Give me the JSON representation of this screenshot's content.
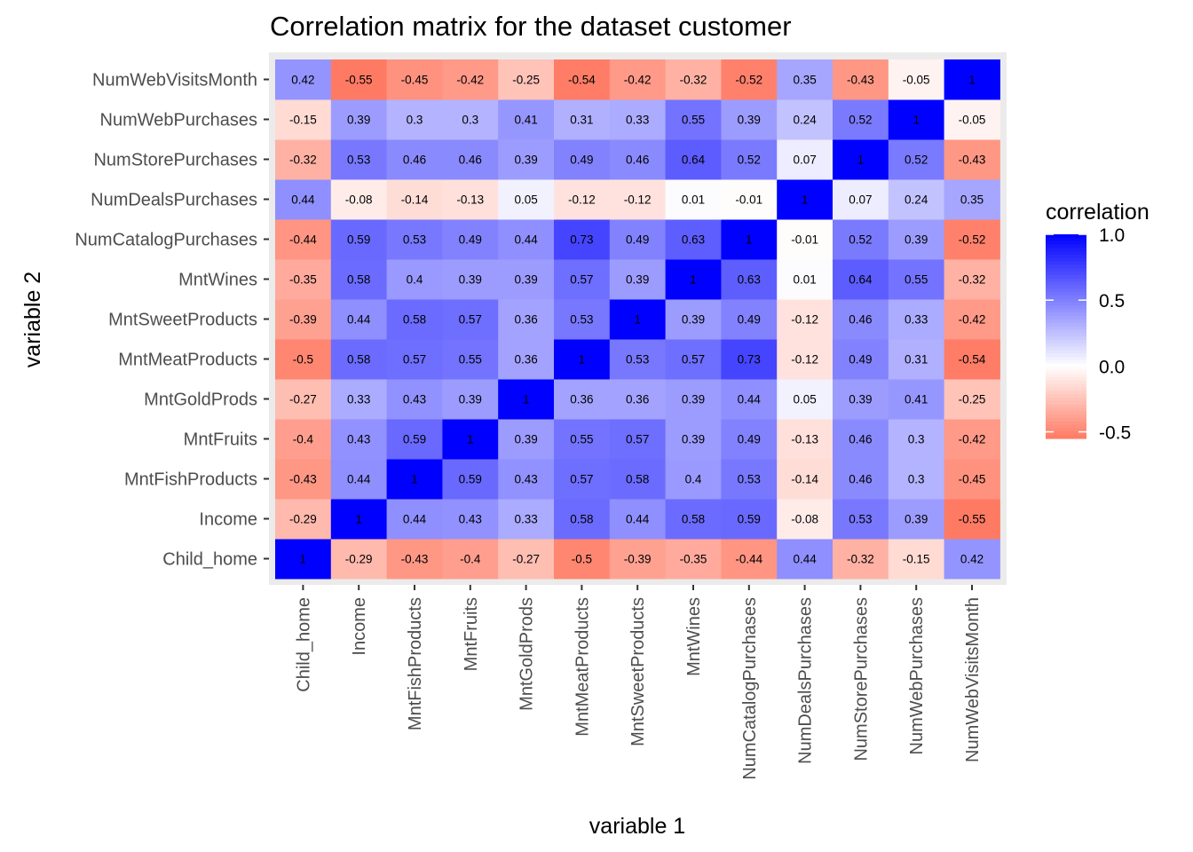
{
  "chart_data": {
    "type": "heatmap",
    "title": "Correlation matrix for the dataset customer",
    "xlabel": "variable 1",
    "ylabel": "variable 2",
    "x_categories": [
      "Child_home",
      "Income",
      "MntFishProducts",
      "MntFruits",
      "MntGoldProds",
      "MntMeatProducts",
      "MntSweetProducts",
      "MntWines",
      "NumCatalogPurchases",
      "NumDealsPurchases",
      "NumStorePurchases",
      "NumWebPurchases",
      "NumWebVisitsMonth"
    ],
    "y_categories": [
      "Child_home",
      "Income",
      "MntFishProducts",
      "MntFruits",
      "MntGoldProds",
      "MntMeatProducts",
      "MntSweetProducts",
      "MntWines",
      "NumCatalogPurchases",
      "NumDealsPurchases",
      "NumStorePurchases",
      "NumWebPurchases",
      "NumWebVisitsMonth"
    ],
    "values": [
      [
        "1",
        "-0.29",
        "-0.43",
        "-0.4",
        "-0.27",
        "-0.5",
        "-0.39",
        "-0.35",
        "-0.44",
        "0.44",
        "-0.32",
        "-0.15",
        "0.42"
      ],
      [
        "-0.29",
        "1",
        "0.44",
        "0.43",
        "0.33",
        "0.58",
        "0.44",
        "0.58",
        "0.59",
        "-0.08",
        "0.53",
        "0.39",
        "-0.55"
      ],
      [
        "-0.43",
        "0.44",
        "1",
        "0.59",
        "0.43",
        "0.57",
        "0.58",
        "0.4",
        "0.53",
        "-0.14",
        "0.46",
        "0.3",
        "-0.45"
      ],
      [
        "-0.4",
        "0.43",
        "0.59",
        "1",
        "0.39",
        "0.55",
        "0.57",
        "0.39",
        "0.49",
        "-0.13",
        "0.46",
        "0.3",
        "-0.42"
      ],
      [
        "-0.27",
        "0.33",
        "0.43",
        "0.39",
        "1",
        "0.36",
        "0.36",
        "0.39",
        "0.44",
        "0.05",
        "0.39",
        "0.41",
        "-0.25"
      ],
      [
        "-0.5",
        "0.58",
        "0.57",
        "0.55",
        "0.36",
        "1",
        "0.53",
        "0.57",
        "0.73",
        "-0.12",
        "0.49",
        "0.31",
        "-0.54"
      ],
      [
        "-0.39",
        "0.44",
        "0.58",
        "0.57",
        "0.36",
        "0.53",
        "1",
        "0.39",
        "0.49",
        "-0.12",
        "0.46",
        "0.33",
        "-0.42"
      ],
      [
        "-0.35",
        "0.58",
        "0.4",
        "0.39",
        "0.39",
        "0.57",
        "0.39",
        "1",
        "0.63",
        "0.01",
        "0.64",
        "0.55",
        "-0.32"
      ],
      [
        "-0.44",
        "0.59",
        "0.53",
        "0.49",
        "0.44",
        "0.73",
        "0.49",
        "0.63",
        "1",
        "-0.01",
        "0.52",
        "0.39",
        "-0.52"
      ],
      [
        "0.44",
        "-0.08",
        "-0.14",
        "-0.13",
        "0.05",
        "-0.12",
        "-0.12",
        "0.01",
        "-0.01",
        "1",
        "0.07",
        "0.24",
        "0.35"
      ],
      [
        "-0.32",
        "0.53",
        "0.46",
        "0.46",
        "0.39",
        "0.49",
        "0.46",
        "0.64",
        "0.52",
        "0.07",
        "1",
        "0.52",
        "-0.43"
      ],
      [
        "-0.15",
        "0.39",
        "0.3",
        "0.3",
        "0.41",
        "0.31",
        "0.33",
        "0.55",
        "0.39",
        "0.24",
        "0.52",
        "1",
        "-0.05"
      ],
      [
        "0.42",
        "-0.55",
        "-0.45",
        "-0.42",
        "-0.25",
        "-0.54",
        "-0.42",
        "-0.32",
        "-0.52",
        "0.35",
        "-0.43",
        "-0.05",
        "1"
      ]
    ],
    "value_orientation": "values[y_index][x_index]; y index 0 is the bottom row",
    "color_scale": {
      "low": "#ff7a63",
      "mid": "#ffffff",
      "high": "#0000ff",
      "low_limit": -0.55,
      "mid_value": 0,
      "high_limit": 1
    },
    "legend": {
      "title": "correlation",
      "ticks": [
        "1.0",
        "0.5",
        "0.0",
        "-0.5"
      ],
      "tick_values": [
        1.0,
        0.5,
        0.0,
        -0.5
      ],
      "placement": "right"
    },
    "panel_background": "#ebebeb",
    "grid": false
  }
}
